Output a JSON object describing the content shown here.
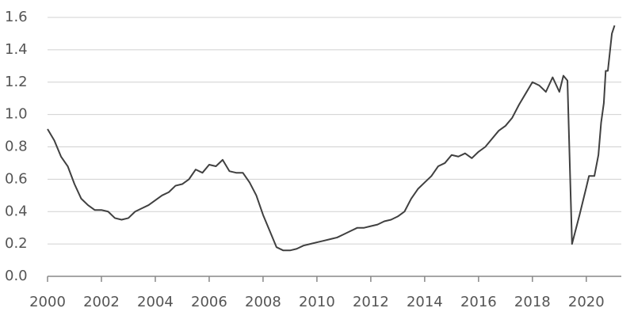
{
  "chart_data": {
    "type": "line",
    "color": "#404040",
    "grid": true,
    "x": [
      2000.0,
      2000.25,
      2000.5,
      2000.75,
      2001.0,
      2001.25,
      2001.5,
      2001.75,
      2002.0,
      2002.25,
      2002.5,
      2002.75,
      2003.0,
      2003.25,
      2003.5,
      2003.75,
      2004.0,
      2004.25,
      2004.5,
      2004.75,
      2005.0,
      2005.25,
      2005.5,
      2005.75,
      2006.0,
      2006.25,
      2006.5,
      2006.75,
      2007.0,
      2007.25,
      2007.5,
      2007.75,
      2008.0,
      2008.25,
      2008.5,
      2008.75,
      2009.0,
      2009.25,
      2009.5,
      2009.75,
      2010.0,
      2010.25,
      2010.5,
      2010.75,
      2011.0,
      2011.25,
      2011.5,
      2011.75,
      2012.0,
      2012.25,
      2012.5,
      2012.75,
      2013.0,
      2013.25,
      2013.5,
      2013.75,
      2014.0,
      2014.25,
      2014.5,
      2014.75,
      2015.0,
      2015.25,
      2015.5,
      2015.75,
      2016.0,
      2016.25,
      2016.5,
      2016.75,
      2017.0,
      2017.25,
      2017.5,
      2017.75,
      2018.0,
      2018.25,
      2018.5,
      2018.75,
      2019.0,
      2019.15,
      2019.3,
      2019.47,
      2019.75,
      2020.0,
      2020.1,
      2020.3,
      2020.45,
      2020.55,
      2020.65,
      2020.72,
      2020.8,
      2020.95,
      2021.05
    ],
    "values": [
      0.91,
      0.84,
      0.74,
      0.68,
      0.57,
      0.48,
      0.44,
      0.41,
      0.41,
      0.4,
      0.36,
      0.35,
      0.36,
      0.4,
      0.42,
      0.44,
      0.47,
      0.5,
      0.52,
      0.56,
      0.57,
      0.6,
      0.66,
      0.64,
      0.69,
      0.68,
      0.72,
      0.65,
      0.64,
      0.64,
      0.58,
      0.5,
      0.38,
      0.28,
      0.18,
      0.16,
      0.16,
      0.17,
      0.19,
      0.2,
      0.21,
      0.22,
      0.23,
      0.24,
      0.26,
      0.28,
      0.3,
      0.3,
      0.31,
      0.32,
      0.34,
      0.35,
      0.37,
      0.4,
      0.48,
      0.54,
      0.58,
      0.62,
      0.68,
      0.7,
      0.75,
      0.74,
      0.76,
      0.73,
      0.77,
      0.8,
      0.85,
      0.9,
      0.93,
      0.98,
      1.06,
      1.13,
      1.2,
      1.18,
      1.14,
      1.23,
      1.14,
      1.24,
      1.21,
      0.2,
      0.38,
      0.55,
      0.62,
      0.62,
      0.75,
      0.95,
      1.07,
      1.27,
      1.27,
      1.5,
      1.55
    ],
    "xlim": [
      2000,
      2021.3
    ],
    "xticks": [
      2000,
      2002,
      2004,
      2006,
      2008,
      2010,
      2012,
      2014,
      2016,
      2018,
      2020
    ],
    "ylim": [
      0,
      1.6
    ],
    "yticks": [
      {
        "value": 0,
        "label": "0.0"
      },
      {
        "value": 0.2,
        "label": "0.2"
      },
      {
        "value": 0.4,
        "label": "0.4"
      },
      {
        "value": 0.6,
        "label": "0.6"
      },
      {
        "value": 0.8,
        "label": "0.8"
      },
      {
        "value": 1.0,
        "label": "1.0"
      },
      {
        "value": 1.2,
        "label": "1.2"
      },
      {
        "value": 1.4,
        "label": "1.4"
      },
      {
        "value": 1.6,
        "label": "1.6"
      }
    ]
  }
}
